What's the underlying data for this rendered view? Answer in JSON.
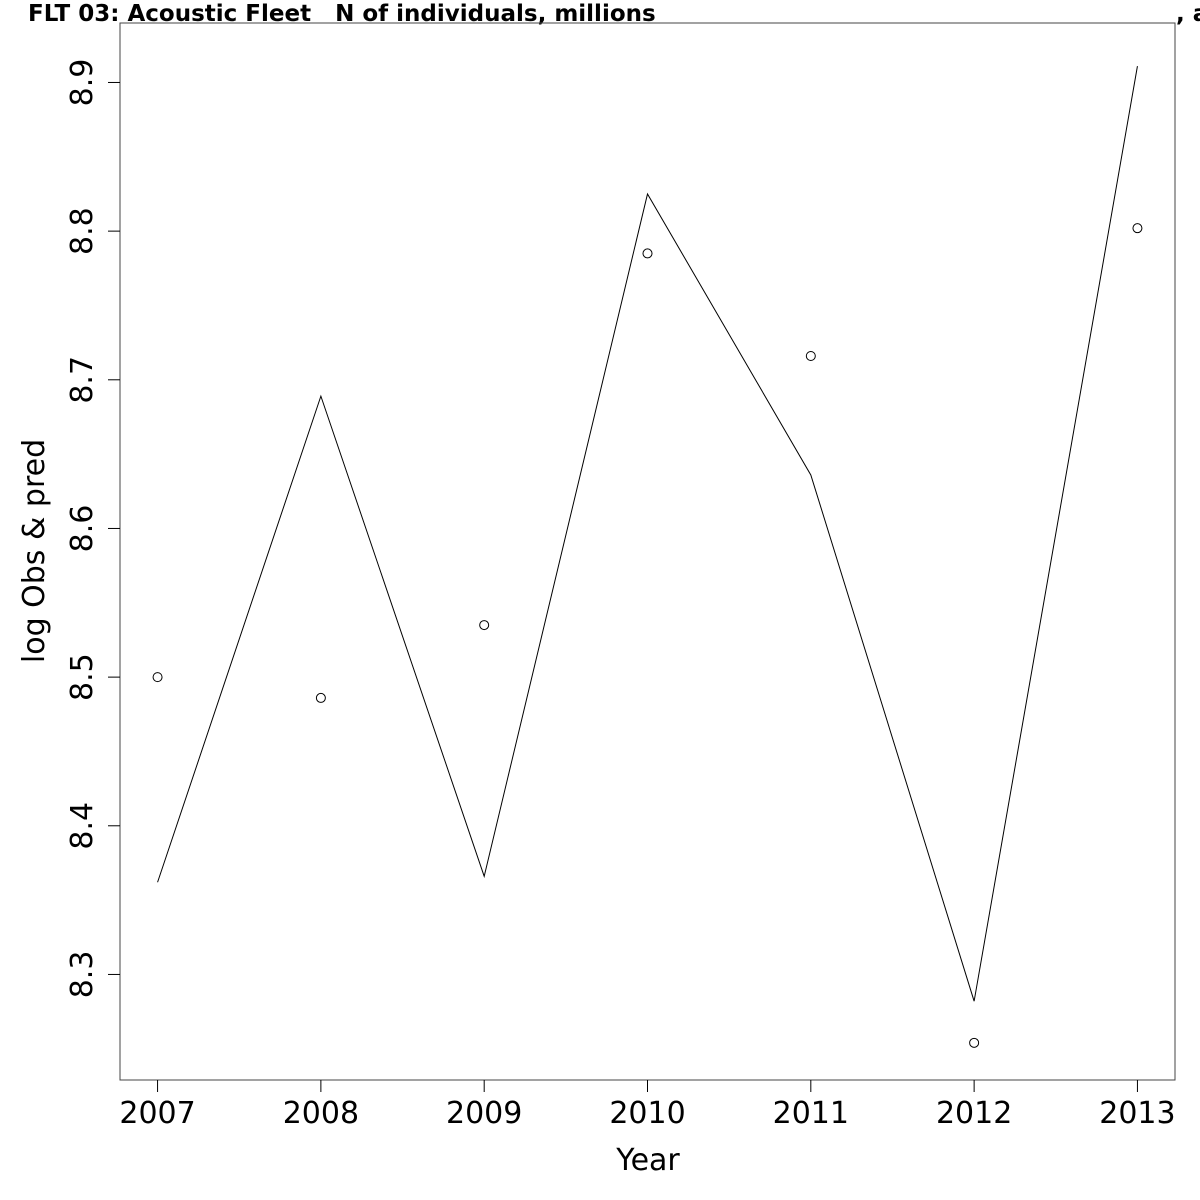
{
  "chart_data": {
    "type": "line",
    "title": "FLT 03: Acoustic Fleet   N of individuals, millions",
    "title_right_fragment": ", a",
    "xlabel": "Year",
    "ylabel": "log Obs & pred",
    "xlim": [
      2006.77,
      2013.23
    ],
    "ylim": [
      8.229,
      8.94
    ],
    "x_ticks": [
      2007,
      2008,
      2009,
      2010,
      2011,
      2012,
      2013
    ],
    "x_tick_labels": [
      "2007",
      "2008",
      "2009",
      "2010",
      "2011",
      "2012",
      "2013"
    ],
    "y_ticks": [
      8.3,
      8.4,
      8.5,
      8.6,
      8.7,
      8.8,
      8.9
    ],
    "y_tick_labels": [
      "8.3",
      "8.4",
      "8.5",
      "8.6",
      "8.7",
      "8.8",
      "8.9"
    ],
    "grid": false,
    "legend": "none",
    "x": [
      2007,
      2008,
      2009,
      2010,
      2011,
      2012,
      2013
    ],
    "series": [
      {
        "style": "line",
        "values": [
          8.362,
          8.689,
          8.366,
          8.825,
          8.636,
          8.282,
          8.911
        ]
      },
      {
        "style": "points",
        "marker": "open-circle",
        "values": [
          8.5,
          8.486,
          8.535,
          8.785,
          8.716,
          8.254,
          8.802
        ]
      }
    ],
    "colors": {
      "line": "#000000",
      "points": "#000000",
      "axes": "#000000",
      "background": "#ffffff"
    }
  }
}
